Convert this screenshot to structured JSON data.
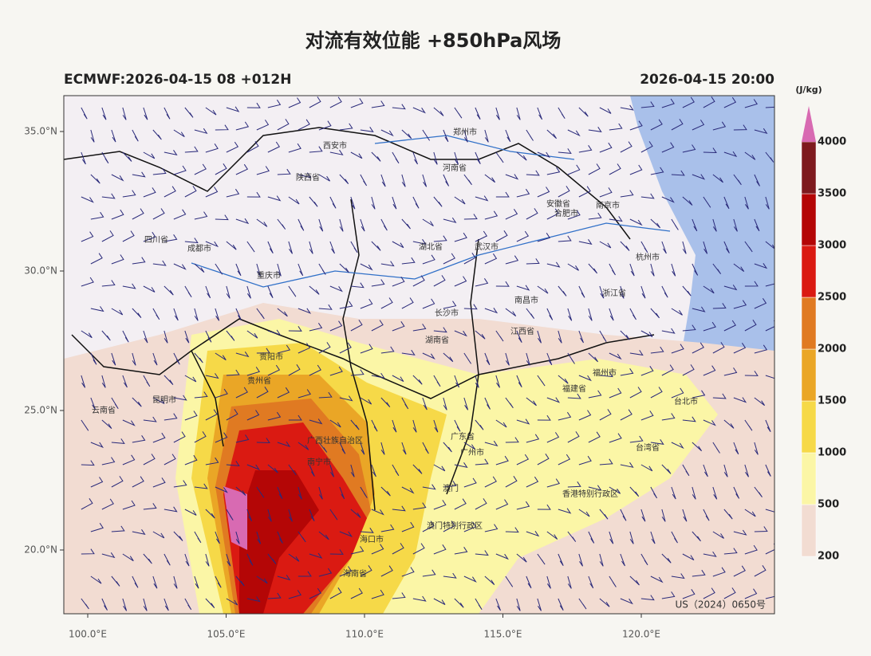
{
  "map": {
    "title": "对流有效位能 +850hPa风场",
    "subtitle_left": "ECMWF:2026-04-15 08 +012H",
    "subtitle_right": "2026-04-15 20:00",
    "yticks": [
      {
        "value": 35,
        "label": "35.0°N"
      },
      {
        "value": 30,
        "label": "30.0°N"
      },
      {
        "value": 25,
        "label": "25.0°N"
      },
      {
        "value": 20,
        "label": "20.0°N"
      }
    ],
    "xticks": [
      {
        "value": 100,
        "label": "100.0°E"
      },
      {
        "value": 105,
        "label": "105.0°E"
      },
      {
        "value": 110,
        "label": "110.0°E"
      },
      {
        "value": 115,
        "label": "115.0°E"
      },
      {
        "value": 120,
        "label": "120.0°E"
      }
    ],
    "colorbar": {
      "unit": "(J/kg)",
      "levels": [
        200,
        500,
        1000,
        1500,
        2000,
        2500,
        3000,
        3500,
        4000
      ],
      "colors": [
        "#f2dcd2",
        "#fbf6a6",
        "#f6d948",
        "#eaa626",
        "#e07a22",
        "#da1a12",
        "#b40606",
        "#7e1a1e",
        "#d86ab2"
      ]
    },
    "cities": [
      "西安市",
      "郑州市",
      "合肥市",
      "南京市",
      "杭州市",
      "成都市",
      "重庆市",
      "武汉市",
      "长沙市",
      "南昌市",
      "贵阳市",
      "福州市",
      "台北市",
      "昆明市",
      "南宁市",
      "广州市",
      "海口市",
      "澳门",
      "河南省",
      "陕西省",
      "湖北省",
      "湖南省",
      "江西省",
      "浙江省",
      "福建省",
      "广东省",
      "台湾省",
      "云南省",
      "贵州省",
      "四川省",
      "安徽省",
      "广西壮族自治区",
      "香港特别行政区",
      "澳门特别行政区",
      "海南省"
    ],
    "watermark": "US（2024）0650号"
  }
}
